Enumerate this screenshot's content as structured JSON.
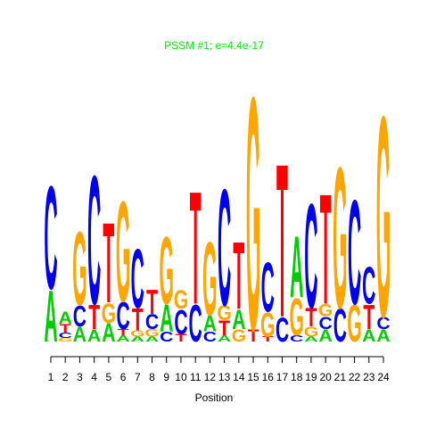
{
  "chart_data": {
    "type": "logo",
    "title": "PSSM #1; e=4.4e-17",
    "title_color": "#00ee00",
    "x_label": "Position",
    "ylim": [
      0,
      2
    ],
    "xticks": [
      1,
      2,
      3,
      4,
      5,
      6,
      7,
      8,
      9,
      10,
      11,
      12,
      13,
      14,
      15,
      16,
      17,
      18,
      19,
      20,
      21,
      22,
      23,
      24
    ],
    "letter_colors": {
      "A": "#00cc00",
      "C": "#0000ee",
      "G": "#ffa500",
      "T": "#ff0000"
    },
    "positions": [
      {
        "stack": [
          {
            "letter": "A",
            "height": 0.42
          },
          {
            "letter": "C",
            "height": 0.84
          }
        ]
      },
      {
        "stack": [
          {
            "letter": "G",
            "height": 0.03
          },
          {
            "letter": "C",
            "height": 0.04
          },
          {
            "letter": "T",
            "height": 0.07
          },
          {
            "letter": "A",
            "height": 0.1
          }
        ]
      },
      {
        "stack": [
          {
            "letter": "A",
            "height": 0.12
          },
          {
            "letter": "C",
            "height": 0.17
          },
          {
            "letter": "G",
            "height": 0.6
          }
        ]
      },
      {
        "stack": [
          {
            "letter": "A",
            "height": 0.1
          },
          {
            "letter": "T",
            "height": 0.2
          },
          {
            "letter": "C",
            "height": 1.05
          }
        ]
      },
      {
        "stack": [
          {
            "letter": "A",
            "height": 0.15
          },
          {
            "letter": "G",
            "height": 0.16
          },
          {
            "letter": "T",
            "height": 0.65
          }
        ]
      },
      {
        "stack": [
          {
            "letter": "A",
            "height": 0.05
          },
          {
            "letter": "T",
            "height": 0.05
          },
          {
            "letter": "C",
            "height": 0.22
          },
          {
            "letter": "G",
            "height": 0.82
          }
        ]
      },
      {
        "stack": [
          {
            "letter": "A",
            "height": 0.04
          },
          {
            "letter": "G",
            "height": 0.05
          },
          {
            "letter": "T",
            "height": 0.18
          },
          {
            "letter": "C",
            "height": 0.48
          }
        ]
      },
      {
        "stack": [
          {
            "letter": "A",
            "height": 0.04
          },
          {
            "letter": "G",
            "height": 0.06
          },
          {
            "letter": "C",
            "height": 0.12
          },
          {
            "letter": "T",
            "height": 0.2
          }
        ]
      },
      {
        "stack": [
          {
            "letter": "C",
            "height": 0.08
          },
          {
            "letter": "A",
            "height": 0.22
          },
          {
            "letter": "G",
            "height": 0.55
          }
        ]
      },
      {
        "stack": [
          {
            "letter": "T",
            "height": 0.06
          },
          {
            "letter": "C",
            "height": 0.2
          },
          {
            "letter": "G",
            "height": 0.15
          }
        ]
      },
      {
        "stack": [
          {
            "letter": "C",
            "height": 0.3
          },
          {
            "letter": "T",
            "height": 0.92
          }
        ]
      },
      {
        "stack": [
          {
            "letter": "C",
            "height": 0.08
          },
          {
            "letter": "A",
            "height": 0.13
          },
          {
            "letter": "G",
            "height": 0.6
          }
        ]
      },
      {
        "stack": [
          {
            "letter": "A",
            "height": 0.05
          },
          {
            "letter": "T",
            "height": 0.12
          },
          {
            "letter": "G",
            "height": 0.12
          },
          {
            "letter": "C",
            "height": 0.95
          }
        ]
      },
      {
        "stack": [
          {
            "letter": "G",
            "height": 0.1
          },
          {
            "letter": "A",
            "height": 0.16
          },
          {
            "letter": "T",
            "height": 0.55
          }
        ]
      },
      {
        "stack": [
          {
            "letter": "T",
            "height": 0.1
          },
          {
            "letter": "G",
            "height": 1.9
          }
        ]
      },
      {
        "stack": [
          {
            "letter": "T",
            "height": 0.04
          },
          {
            "letter": "G",
            "height": 0.2
          },
          {
            "letter": "C",
            "height": 0.4
          }
        ]
      },
      {
        "stack": [
          {
            "letter": "C",
            "height": 0.2
          },
          {
            "letter": "T",
            "height": 1.25
          }
        ]
      },
      {
        "stack": [
          {
            "letter": "C",
            "height": 0.05
          },
          {
            "letter": "G",
            "height": 0.3
          },
          {
            "letter": "A",
            "height": 0.5
          }
        ]
      },
      {
        "stack": [
          {
            "letter": "A",
            "height": 0.04
          },
          {
            "letter": "G",
            "height": 0.08
          },
          {
            "letter": "T",
            "height": 0.15
          },
          {
            "letter": "C",
            "height": 0.85
          }
        ]
      },
      {
        "stack": [
          {
            "letter": "A",
            "height": 0.1
          },
          {
            "letter": "C",
            "height": 0.1
          },
          {
            "letter": "G",
            "height": 0.1
          },
          {
            "letter": "T",
            "height": 0.9
          }
        ]
      },
      {
        "stack": [
          {
            "letter": "C",
            "height": 0.27
          },
          {
            "letter": "G",
            "height": 1.15
          }
        ]
      },
      {
        "stack": [
          {
            "letter": "G",
            "height": 0.3
          },
          {
            "letter": "C",
            "height": 0.85
          }
        ]
      },
      {
        "stack": [
          {
            "letter": "A",
            "height": 0.1
          },
          {
            "letter": "T",
            "height": 0.2
          },
          {
            "letter": "C",
            "height": 0.3
          }
        ]
      },
      {
        "stack": [
          {
            "letter": "A",
            "height": 0.1
          },
          {
            "letter": "C",
            "height": 0.1
          },
          {
            "letter": "G",
            "height": 1.64
          }
        ]
      }
    ]
  }
}
